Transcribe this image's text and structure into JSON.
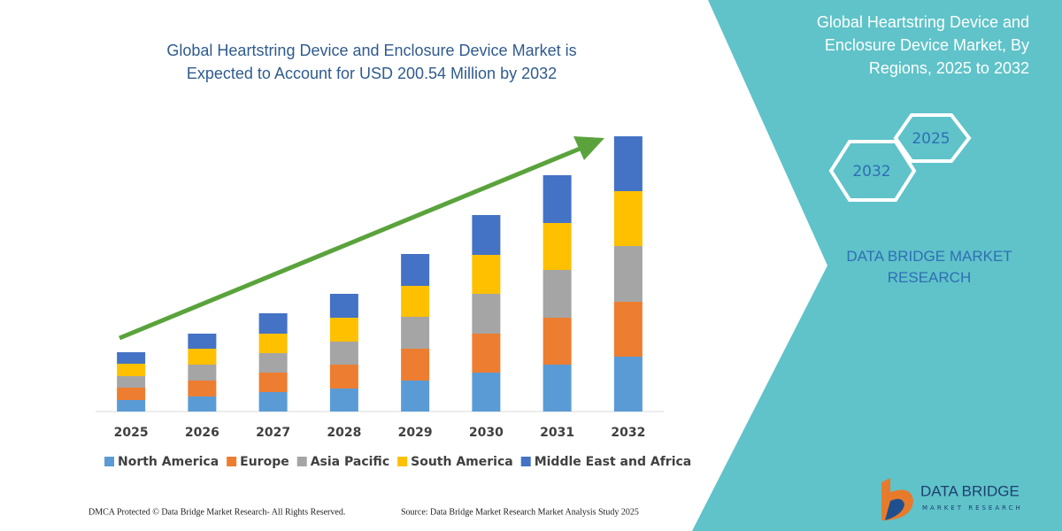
{
  "chart_data": {
    "type": "bar",
    "stacked": true,
    "title": "Global Heartstring Device and Enclosure Device Market is Expected to Account for USD 200.54 Million by 2032",
    "categories": [
      "2025",
      "2026",
      "2027",
      "2028",
      "2029",
      "2030",
      "2031",
      "2032"
    ],
    "series": [
      {
        "name": "North America",
        "color": "#5b9bd5",
        "values": [
          13,
          17,
          22,
          26,
          35,
          44,
          53,
          62
        ]
      },
      {
        "name": "Europe",
        "color": "#ed7d31",
        "values": [
          14,
          18,
          22,
          27,
          36,
          44,
          53,
          62
        ]
      },
      {
        "name": "Asia Pacific",
        "color": "#a5a5a5",
        "values": [
          13,
          18,
          22,
          26,
          36,
          45,
          54,
          63
        ]
      },
      {
        "name": "South America",
        "color": "#ffc000",
        "values": [
          14,
          18,
          22,
          27,
          35,
          44,
          53,
          62
        ]
      },
      {
        "name": "Middle East and Africa",
        "color": "#4472c4",
        "values": [
          13,
          17,
          23,
          27,
          36,
          45,
          54,
          62
        ]
      }
    ]
  },
  "panel": {
    "title": "Global Heartstring Device and Enclosure Device Market, By Regions, 2025 to 2032",
    "hex_start": "2025",
    "hex_end": "2032",
    "brand": "DATA BRIDGE MARKET RESEARCH"
  },
  "logo": {
    "name": "DATA BRIDGE",
    "tagline": "MARKET RESEARCH"
  },
  "footer": {
    "left": "DMCA Protected © Data Bridge Market Research- All Rights Reserved.",
    "right": "Source: Data Bridge Market Research Market Analysis Study 2025"
  }
}
